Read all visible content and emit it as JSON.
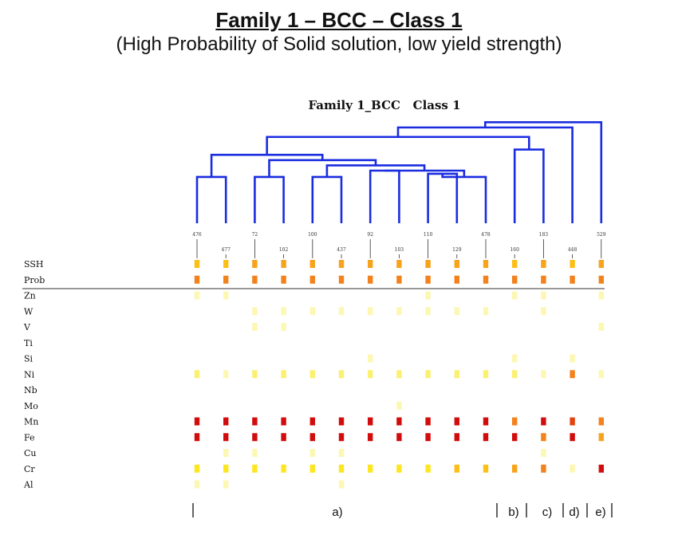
{
  "slide": {
    "title": "Family 1 – BCC – Class 1",
    "subtitle": "(High Probability of Solid solution, low yield strength)"
  },
  "chart_data": {
    "type": "heatmap",
    "title": "Family 1_BCC   Class 1",
    "samples": [
      "476",
      "477",
      "72",
      "102",
      "100",
      "437",
      "92",
      "103",
      "110",
      "129",
      "478",
      "160",
      "183",
      "448",
      "529"
    ],
    "rows": [
      "SSH",
      "Prob",
      "Zn",
      "W",
      "V",
      "Ti",
      "Si",
      "Ni",
      "Nb",
      "Mo",
      "Mn",
      "Fe",
      "Cu",
      "Cr",
      "Al"
    ],
    "separator_after_row": "Prob",
    "color_scale": [
      "#ffffff",
      "#fdf7b4",
      "#fbf070",
      "#fde61f",
      "#fbbf18",
      "#f7a31c",
      "#f3811c",
      "#e34410",
      "#d20c0c"
    ],
    "values": [
      [
        4,
        4,
        5,
        5,
        5,
        5,
        5,
        5,
        5,
        5,
        5,
        4,
        5,
        4,
        5
      ],
      [
        6,
        6,
        6,
        6,
        6,
        6,
        6,
        6,
        6,
        6,
        6,
        6,
        6,
        6,
        6
      ],
      [
        1,
        1,
        0,
        0,
        0,
        0,
        0,
        0,
        1,
        0,
        0,
        1,
        1,
        0,
        1
      ],
      [
        0,
        0,
        1,
        1,
        1,
        1,
        1,
        1,
        1,
        1,
        1,
        0,
        1,
        0,
        0
      ],
      [
        0,
        0,
        1,
        1,
        0,
        0,
        0,
        0,
        0,
        0,
        0,
        0,
        0,
        0,
        1
      ],
      [
        0,
        0,
        0,
        0,
        0,
        0,
        0,
        0,
        0,
        0,
        0,
        0,
        0,
        0,
        0
      ],
      [
        0,
        0,
        0,
        0,
        0,
        0,
        1,
        0,
        0,
        0,
        0,
        1,
        0,
        1,
        0
      ],
      [
        2,
        1,
        2,
        2,
        2,
        2,
        2,
        2,
        2,
        2,
        2,
        2,
        1,
        6,
        1
      ],
      [
        0,
        0,
        0,
        0,
        0,
        0,
        0,
        0,
        0,
        0,
        0,
        0,
        0,
        0,
        0
      ],
      [
        0,
        0,
        0,
        0,
        0,
        0,
        0,
        1,
        0,
        0,
        0,
        0,
        0,
        0,
        0
      ],
      [
        8,
        8,
        8,
        8,
        8,
        8,
        8,
        8,
        8,
        8,
        8,
        6,
        8,
        7,
        6
      ],
      [
        8,
        8,
        8,
        8,
        8,
        8,
        8,
        8,
        8,
        8,
        8,
        8,
        6,
        8,
        5
      ],
      [
        0,
        1,
        1,
        0,
        1,
        1,
        0,
        0,
        0,
        0,
        0,
        0,
        1,
        0,
        0
      ],
      [
        3,
        3,
        3,
        3,
        3,
        3,
        3,
        3,
        3,
        4,
        4,
        5,
        6,
        1,
        8
      ],
      [
        1,
        1,
        0,
        0,
        0,
        1,
        0,
        0,
        0,
        0,
        0,
        0,
        0,
        0,
        0
      ]
    ],
    "dendrogram": {
      "color": "#1a2ce0",
      "merges": [
        [
          0,
          1,
          0.44
        ],
        [
          2,
          3,
          0.44
        ],
        [
          4,
          5,
          0.44
        ],
        [
          6,
          7,
          0.5
        ],
        [
          8,
          9,
          0.47
        ],
        [
          19,
          10,
          0.44
        ],
        [
          18,
          20,
          0.5
        ],
        [
          17,
          21,
          0.55
        ],
        [
          16,
          22,
          0.6
        ],
        [
          15,
          23,
          0.65
        ],
        [
          11,
          12,
          0.7
        ],
        [
          24,
          25,
          0.82
        ],
        [
          26,
          13,
          0.91
        ],
        [
          27,
          14,
          0.96
        ]
      ]
    },
    "groups": [
      "a)",
      "b)",
      "c)",
      "d)",
      "e)"
    ]
  }
}
